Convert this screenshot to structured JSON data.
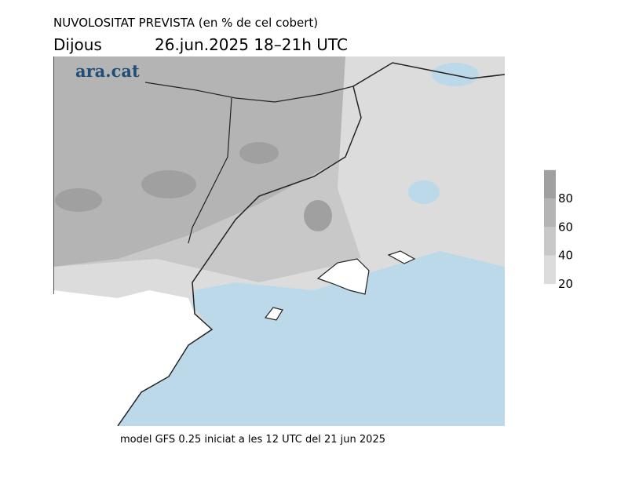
{
  "header": {
    "title": "NUVOLOSITAT PREVISTA (en % de cel cobert)",
    "day": "Dijous",
    "valid": "26.jun.2025 18–21h UTC"
  },
  "logo": "ara.cat",
  "legend": {
    "ticks": [
      20,
      40,
      60,
      80
    ],
    "colors": [
      "#dcdcdc",
      "#c8c8c8",
      "#b4b4b4",
      "#a0a0a0"
    ]
  },
  "footer": "model GFS 0.25 iniciat a les 12 UTC del 21 jun 2025"
}
